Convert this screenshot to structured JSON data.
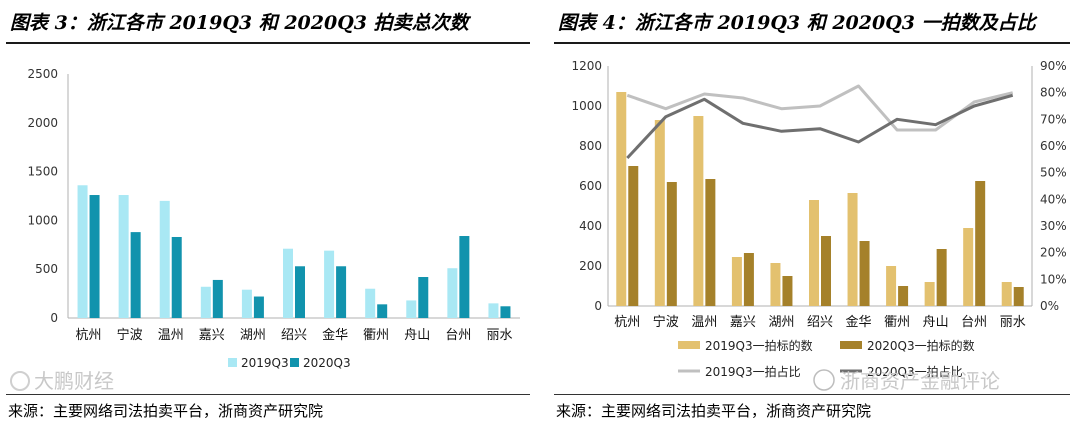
{
  "chart_data": [
    {
      "type": "bar",
      "title": "图表 3：浙江各市 2019Q3 和 2020Q3 拍卖总次数",
      "categories": [
        "杭州",
        "宁波",
        "温州",
        "嘉兴",
        "湖州",
        "绍兴",
        "金华",
        "衢州",
        "舟山",
        "台州",
        "丽水"
      ],
      "series": [
        {
          "name": "2019Q3",
          "color": "#a9e8f4",
          "values": [
            1360,
            1260,
            1200,
            320,
            290,
            710,
            690,
            300,
            180,
            510,
            150
          ]
        },
        {
          "name": "2020Q3",
          "color": "#1193ad",
          "values": [
            1260,
            880,
            830,
            390,
            220,
            530,
            530,
            140,
            420,
            840,
            120
          ]
        }
      ],
      "ylim": [
        0,
        2500
      ],
      "yticks": [
        0,
        500,
        1000,
        1500,
        2000,
        2500
      ],
      "grid": false,
      "legend": "bottom",
      "source": "来源：主要网络司法拍卖平台，浙商资产研究院"
    },
    {
      "type": "bar",
      "title": "图表 4：浙江各市 2019Q3 和 2020Q3 一拍数及占比",
      "categories": [
        "杭州",
        "宁波",
        "温州",
        "嘉兴",
        "湖州",
        "绍兴",
        "金华",
        "衢州",
        "舟山",
        "台州",
        "丽水"
      ],
      "series": [
        {
          "name": "2019Q3一拍标的数",
          "kind": "bar",
          "axis": "left",
          "color": "#e3c16f",
          "values": [
            1070,
            930,
            950,
            245,
            215,
            530,
            565,
            200,
            120,
            390,
            120
          ]
        },
        {
          "name": "2020Q3一拍标的数",
          "kind": "bar",
          "axis": "left",
          "color": "#a5812a",
          "values": [
            700,
            620,
            635,
            265,
            150,
            350,
            325,
            100,
            285,
            625,
            95
          ]
        },
        {
          "name": "2019Q3一拍占比",
          "kind": "line",
          "axis": "right",
          "color": "#c0c0c0",
          "values": [
            0.79,
            0.74,
            0.795,
            0.78,
            0.74,
            0.75,
            0.825,
            0.66,
            0.66,
            0.765,
            0.8
          ]
        },
        {
          "name": "2020Q3一拍占比",
          "kind": "line",
          "axis": "right",
          "color": "#6f6f6f",
          "values": [
            0.555,
            0.71,
            0.775,
            0.685,
            0.655,
            0.665,
            0.615,
            0.7,
            0.68,
            0.75,
            0.79
          ]
        }
      ],
      "ylim": [
        0,
        1200
      ],
      "yticks": [
        0,
        200,
        400,
        600,
        800,
        1000,
        1200
      ],
      "y2lim": [
        0,
        0.9
      ],
      "y2ticks": [
        "0%",
        "10%",
        "20%",
        "30%",
        "40%",
        "50%",
        "60%",
        "70%",
        "80%",
        "90%"
      ],
      "grid": false,
      "legend": "bottom",
      "source": "来源：主要网络司法拍卖平台，浙商资产研究院"
    }
  ],
  "watermarks": {
    "left": "大鹏财经",
    "right": "浙商资产金融评论"
  }
}
